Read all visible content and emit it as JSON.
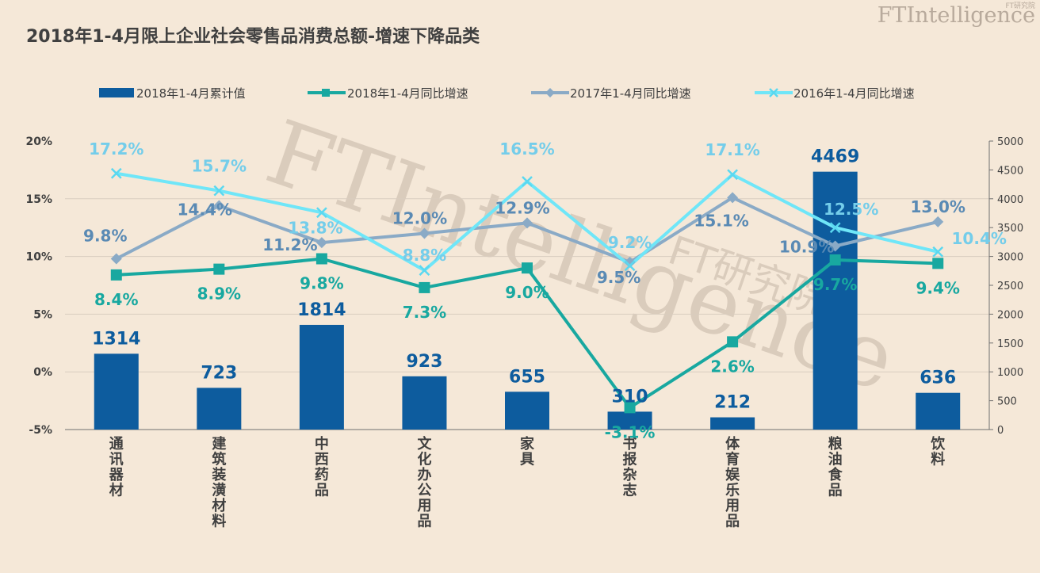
{
  "header": {
    "title": "2018年1-4月限上企业社会零售品消费总额-增速下降品类",
    "brand": "FTIntelligence",
    "brand_sub": "FT研究院"
  },
  "watermark": {
    "text": "FTIntelligence",
    "sub": "FT研究院"
  },
  "colors": {
    "background": "#f5e8d8",
    "bar": "#0d5c9e",
    "series_2018": "#18a8a0",
    "series_2017": "#8aaac6",
    "series_2016": "#6fe6f8",
    "label_2016": "#74cdea"
  },
  "chart_data": {
    "type": "bar+line",
    "categories": [
      "通讯器材",
      "建筑装潢材料",
      "中西药品",
      "文化办公用品",
      "家具",
      "书报杂志",
      "体育娱乐用品",
      "粮油食品",
      "饮料"
    ],
    "bar_series": {
      "name": "2018年1-4月累计值",
      "axis": "right",
      "values": [
        1314,
        723,
        1814,
        923,
        655,
        310,
        212,
        4469,
        636
      ],
      "labels": [
        "1314",
        "723",
        "1814",
        "923",
        "655",
        "310",
        "212",
        "4469",
        "636"
      ]
    },
    "line_series": [
      {
        "name": "2018年1-4月同比增速",
        "axis": "left",
        "marker": "square",
        "values": [
          8.4,
          8.9,
          9.8,
          7.3,
          9.0,
          -3.1,
          2.6,
          9.7,
          9.4
        ],
        "labels": [
          "8.4%",
          "8.9%",
          "9.8%",
          "7.3%",
          "9.0%",
          "-3.1%",
          "2.6%",
          "9.7%",
          "9.4%"
        ]
      },
      {
        "name": "2017年1-4月同比增速",
        "axis": "left",
        "marker": "diamond",
        "values": [
          9.8,
          14.4,
          11.2,
          12.0,
          12.9,
          9.5,
          15.1,
          10.9,
          13.0
        ],
        "labels": [
          "9.8%",
          "14.4%",
          "11.2%",
          "12.0%",
          "12.9%",
          "9.5%",
          "15.1%",
          "10.9%",
          "13.0%"
        ]
      },
      {
        "name": "2016年1-4月同比增速",
        "axis": "left",
        "marker": "x",
        "values": [
          17.2,
          15.7,
          13.8,
          8.8,
          16.5,
          9.2,
          17.1,
          12.5,
          10.4
        ],
        "labels": [
          "17.2%",
          "15.7%",
          "13.8%",
          "8.8%",
          "16.5%",
          "9.2%",
          "17.1%",
          "12.5%",
          "10.4%"
        ]
      }
    ],
    "y_left": {
      "min": -5,
      "max": 20,
      "ticks": [
        "20%",
        "15%",
        "10%",
        "5%",
        "0%",
        "-5%"
      ]
    },
    "y_right": {
      "min": 0,
      "max": 5000,
      "ticks": [
        "5000",
        "4500",
        "4000",
        "3500",
        "3000",
        "2500",
        "2000",
        "1500",
        "1000",
        "500",
        "0"
      ]
    },
    "legend": {
      "placement": "top"
    },
    "grid": true
  }
}
